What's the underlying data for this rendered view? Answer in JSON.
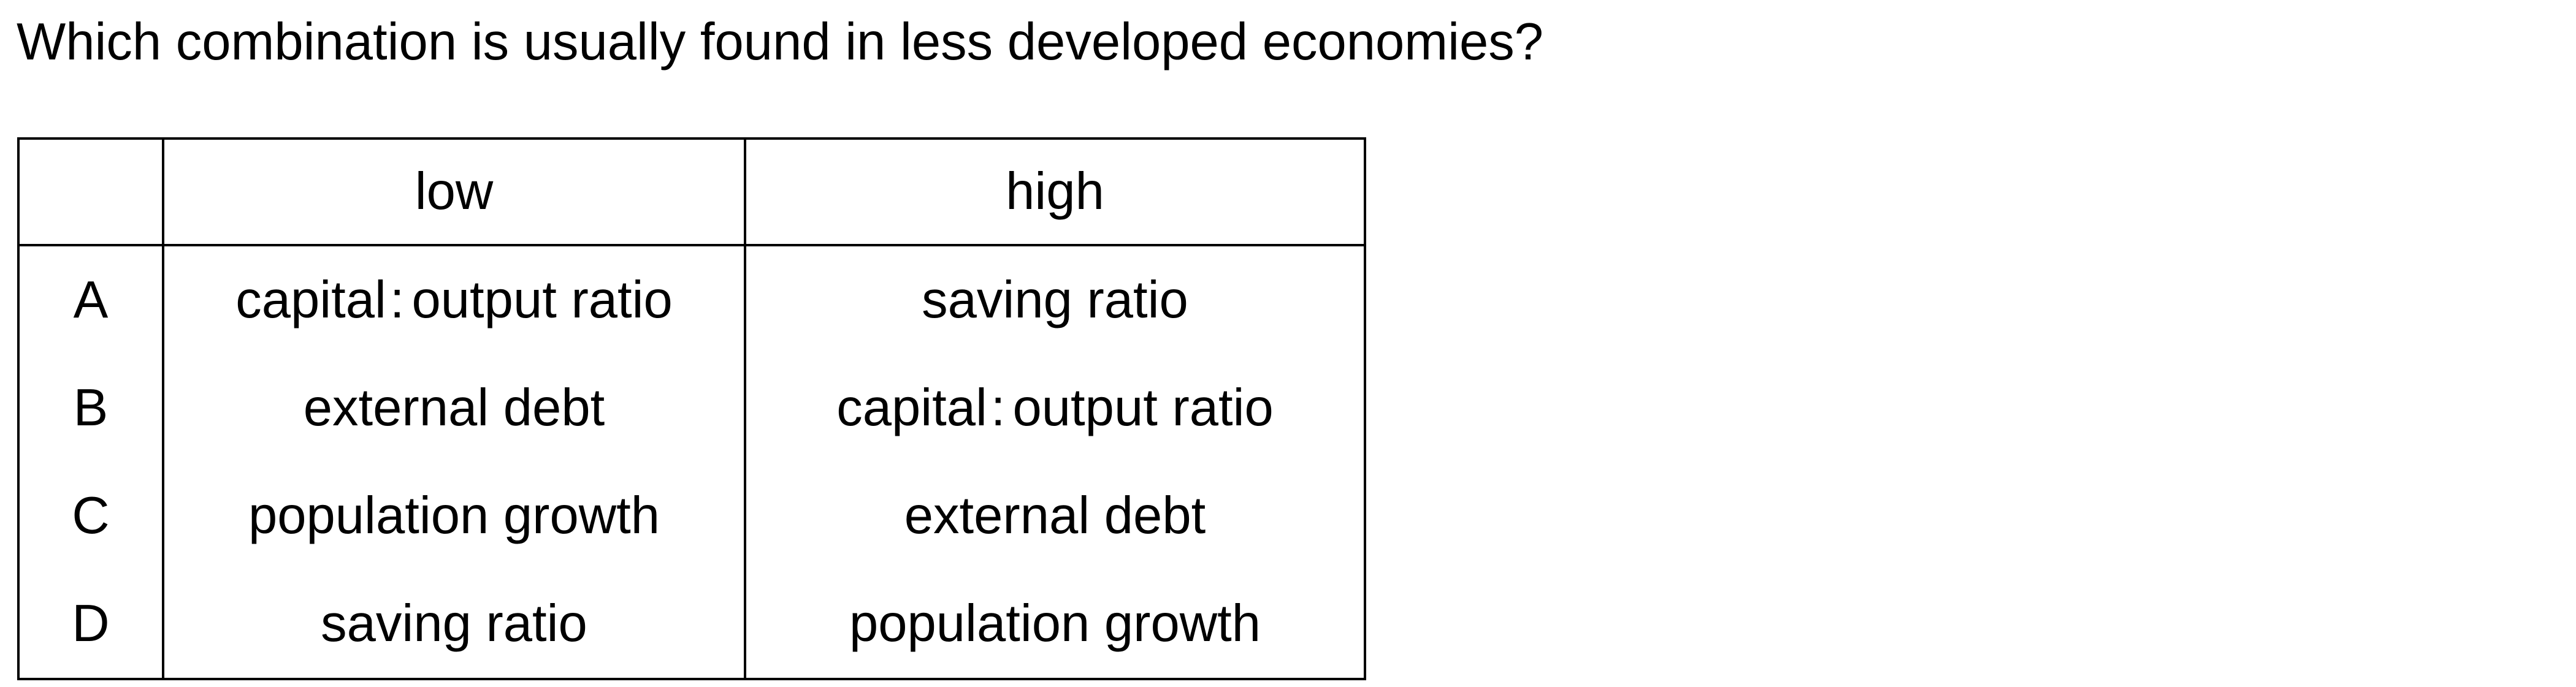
{
  "question": "Which combination is usually found in less developed economies?",
  "table": {
    "headers": [
      "",
      "low",
      "high"
    ],
    "rows": [
      {
        "key": "A",
        "low": [
          "capital",
          "output ratio"
        ],
        "high": [
          "saving ratio"
        ]
      },
      {
        "key": "B",
        "low": [
          "external debt"
        ],
        "high": [
          "capital",
          "output ratio"
        ]
      },
      {
        "key": "C",
        "low": [
          "population growth"
        ],
        "high": [
          "external debt"
        ]
      },
      {
        "key": "D",
        "low": [
          "saving ratio"
        ],
        "high": [
          "population growth"
        ]
      }
    ]
  }
}
